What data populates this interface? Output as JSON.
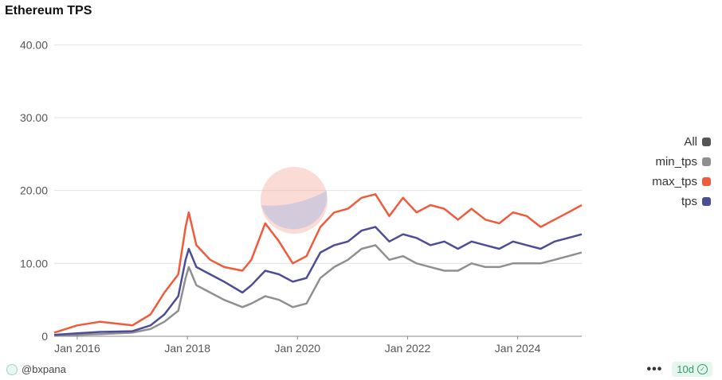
{
  "title": "Ethereum TPS",
  "author": "@bxpana",
  "refresh_badge": "10d",
  "more_icon": "more-icon",
  "legend": [
    {
      "label": "All",
      "color": "#555555"
    },
    {
      "label": "min_tps",
      "color": "#8f8f8f"
    },
    {
      "label": "max_tps",
      "color": "#f15a3a"
    },
    {
      "label": "tps",
      "color": "#4c4d96"
    }
  ],
  "colors": {
    "min_tps": "#8f8f8f",
    "max_tps": "#f15a3a",
    "tps": "#4c4d96",
    "grid": "#e3e3e3",
    "axis": "#888888"
  },
  "chart_data": {
    "type": "line",
    "title": "Ethereum TPS",
    "xlabel": "",
    "ylabel": "",
    "x_ticks": [
      "Jan 2016",
      "Jan 2018",
      "Jan 2020",
      "Jan 2022",
      "Jan 2024"
    ],
    "y_ticks": [
      "0",
      "10.00",
      "20.00",
      "30.00",
      "40.00"
    ],
    "ylim": [
      0,
      42
    ],
    "xlim": [
      "2015-08-01",
      "2025-03-01"
    ],
    "grid": true,
    "legend_position": "right",
    "series": [
      {
        "name": "tps",
        "x": [
          "2015-08-01",
          "2016-01-01",
          "2016-06-01",
          "2017-01-01",
          "2017-05-01",
          "2017-08-01",
          "2017-11-01",
          "2017-12-20",
          "2018-01-10",
          "2018-03-01",
          "2018-06-01",
          "2018-09-01",
          "2019-01-01",
          "2019-03-01",
          "2019-06-01",
          "2019-09-01",
          "2019-12-01",
          "2020-03-01",
          "2020-06-01",
          "2020-09-01",
          "2020-12-01",
          "2021-03-01",
          "2021-06-01",
          "2021-09-01",
          "2021-12-01",
          "2022-03-01",
          "2022-06-01",
          "2022-09-01",
          "2022-12-01",
          "2023-03-01",
          "2023-06-01",
          "2023-09-01",
          "2023-12-01",
          "2024-03-01",
          "2024-06-01",
          "2024-09-01",
          "2024-12-01",
          "2025-03-01"
        ],
        "values": [
          0.2,
          0.4,
          0.6,
          0.7,
          1.5,
          3.0,
          5.5,
          10.5,
          12.0,
          9.5,
          8.5,
          7.5,
          6.0,
          7.0,
          9.0,
          8.5,
          7.5,
          8.0,
          11.5,
          12.5,
          13.0,
          14.5,
          15.0,
          13.0,
          14.0,
          13.5,
          12.5,
          13.0,
          12.0,
          13.0,
          12.5,
          12.0,
          13.0,
          12.5,
          12.0,
          13.0,
          13.5,
          14.0
        ]
      },
      {
        "name": "min_tps",
        "x": [
          "2015-08-01",
          "2016-01-01",
          "2016-06-01",
          "2017-01-01",
          "2017-05-01",
          "2017-08-01",
          "2017-11-01",
          "2017-12-20",
          "2018-01-10",
          "2018-03-01",
          "2018-06-01",
          "2018-09-01",
          "2019-01-01",
          "2019-03-01",
          "2019-06-01",
          "2019-09-01",
          "2019-12-01",
          "2020-03-01",
          "2020-06-01",
          "2020-09-01",
          "2020-12-01",
          "2021-03-01",
          "2021-06-01",
          "2021-09-01",
          "2021-12-01",
          "2022-03-01",
          "2022-06-01",
          "2022-09-01",
          "2022-12-01",
          "2023-03-01",
          "2023-06-01",
          "2023-09-01",
          "2023-12-01",
          "2024-03-01",
          "2024-06-01",
          "2024-09-01",
          "2024-12-01",
          "2025-03-01"
        ],
        "values": [
          0.1,
          0.2,
          0.3,
          0.5,
          1.0,
          2.0,
          3.5,
          8.0,
          9.5,
          7.0,
          6.0,
          5.0,
          4.0,
          4.5,
          5.5,
          5.0,
          4.0,
          4.5,
          8.0,
          9.5,
          10.5,
          12.0,
          12.5,
          10.5,
          11.0,
          10.0,
          9.5,
          9.0,
          9.0,
          10.0,
          9.5,
          9.5,
          10.0,
          10.0,
          10.0,
          10.5,
          11.0,
          11.5
        ]
      },
      {
        "name": "max_tps",
        "x": [
          "2015-08-01",
          "2016-01-01",
          "2016-06-01",
          "2017-01-01",
          "2017-05-01",
          "2017-08-01",
          "2017-11-01",
          "2017-12-20",
          "2018-01-10",
          "2018-03-01",
          "2018-06-01",
          "2018-09-01",
          "2019-01-01",
          "2019-03-01",
          "2019-06-01",
          "2019-09-01",
          "2019-12-01",
          "2020-03-01",
          "2020-06-01",
          "2020-09-01",
          "2020-12-01",
          "2021-03-01",
          "2021-06-01",
          "2021-09-01",
          "2021-12-01",
          "2022-03-01",
          "2022-06-01",
          "2022-09-01",
          "2022-12-01",
          "2023-03-01",
          "2023-06-01",
          "2023-09-01",
          "2023-12-01",
          "2024-03-01",
          "2024-06-01",
          "2024-09-01",
          "2024-12-01",
          "2025-03-01"
        ],
        "values": [
          0.5,
          1.5,
          2.0,
          1.5,
          3.0,
          6.0,
          8.5,
          15.0,
          17.0,
          12.5,
          10.5,
          9.5,
          9.0,
          10.5,
          15.5,
          13.0,
          10.0,
          11.0,
          15.0,
          17.0,
          17.5,
          19.0,
          19.5,
          16.5,
          19.0,
          17.0,
          18.0,
          17.5,
          16.0,
          17.5,
          16.0,
          15.5,
          17.0,
          16.5,
          15.0,
          16.0,
          17.0,
          18.0
        ]
      }
    ]
  }
}
